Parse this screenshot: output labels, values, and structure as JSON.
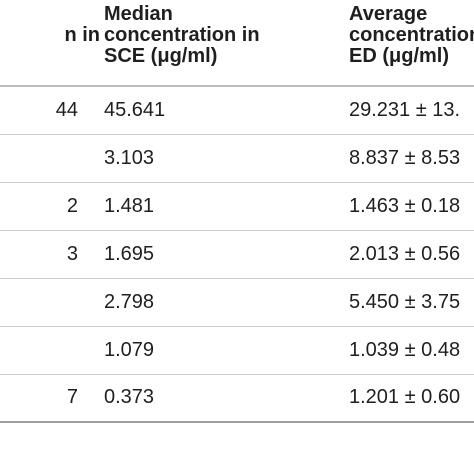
{
  "table": {
    "headers": [
      [
        "n in"
      ],
      [
        "Median",
        "concentration in",
        "SCE (μg/ml)"
      ],
      [
        "Average",
        "concentration",
        "ED (μg/ml)"
      ]
    ],
    "rows": [
      [
        "44",
        "45.641",
        "29.231 ± 13."
      ],
      [
        "",
        "3.103",
        "8.837 ± 8.53"
      ],
      [
        "2",
        "1.481",
        "1.463 ± 0.18"
      ],
      [
        "3",
        "1.695",
        "2.013 ± 0.56"
      ],
      [
        "",
        "2.798",
        "5.450 ± 3.75"
      ],
      [
        "",
        "1.079",
        "1.039 ± 0.48"
      ],
      [
        "7",
        "0.373",
        "1.201 ± 0.60"
      ]
    ]
  }
}
